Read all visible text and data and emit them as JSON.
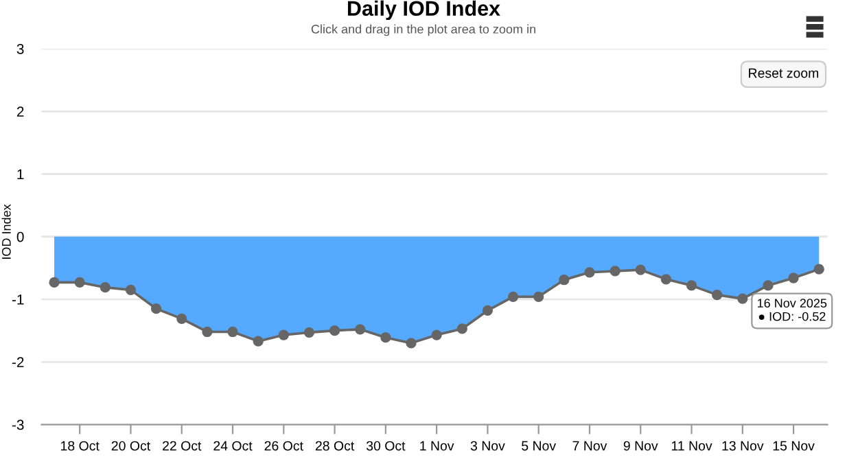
{
  "chart_data": {
    "type": "area",
    "title": "Daily IOD Index",
    "subtitle": "Click and drag in the plot area to zoom in",
    "ylabel": "IOD Index",
    "x": [
      "2025-10-17",
      "2025-10-18",
      "2025-10-19",
      "2025-10-20",
      "2025-10-21",
      "2025-10-22",
      "2025-10-23",
      "2025-10-24",
      "2025-10-25",
      "2025-10-26",
      "2025-10-27",
      "2025-10-28",
      "2025-10-29",
      "2025-10-30",
      "2025-10-31",
      "2025-11-01",
      "2025-11-02",
      "2025-11-03",
      "2025-11-04",
      "2025-11-05",
      "2025-11-06",
      "2025-11-07",
      "2025-11-08",
      "2025-11-09",
      "2025-11-10",
      "2025-11-11",
      "2025-11-12",
      "2025-11-13",
      "2025-11-14",
      "2025-11-15",
      "2025-11-16"
    ],
    "series": [
      {
        "color": "#55aaff",
        "values": [
          -0.73,
          -0.73,
          -0.81,
          -0.85,
          -1.15,
          -1.31,
          -1.52,
          -1.52,
          -1.67,
          -1.57,
          -1.53,
          -1.5,
          -1.48,
          -1.61,
          -1.7,
          -1.57,
          -1.47,
          -1.18,
          -0.96,
          -0.96,
          -0.69,
          -0.57,
          -0.55,
          -0.53,
          -0.68,
          -0.78,
          -0.93,
          -0.99,
          -0.78,
          -0.66,
          -0.52
        ]
      }
    ],
    "xlim": [
      "2025-10-16T12:00",
      "2025-11-16T08:00"
    ],
    "ylim": [
      -3,
      3
    ],
    "yticks": [
      -3,
      -2,
      -1,
      0,
      1,
      2,
      3
    ],
    "xticks": [
      {
        "value": "2025-10-18",
        "label": "18 Oct"
      },
      {
        "value": "2025-10-20",
        "label": "20 Oct"
      },
      {
        "value": "2025-10-22",
        "label": "22 Oct"
      },
      {
        "value": "2025-10-24",
        "label": "24 Oct"
      },
      {
        "value": "2025-10-26",
        "label": "26 Oct"
      },
      {
        "value": "2025-10-28",
        "label": "28 Oct"
      },
      {
        "value": "2025-10-30",
        "label": "30 Oct"
      },
      {
        "value": "2025-11-01",
        "label": "1 Nov"
      },
      {
        "value": "2025-11-03",
        "label": "3 Nov"
      },
      {
        "value": "2025-11-05",
        "label": "5 Nov"
      },
      {
        "value": "2025-11-07",
        "label": "7 Nov"
      },
      {
        "value": "2025-11-09",
        "label": "9 Nov"
      },
      {
        "value": "2025-11-11",
        "label": "11 Nov"
      },
      {
        "value": "2025-11-13",
        "label": "13 Nov"
      },
      {
        "value": "2025-11-15",
        "label": "15 Nov"
      }
    ],
    "grid": "y",
    "marker": "circle",
    "line_style": "solid",
    "legend": false,
    "annotations": [
      "16 Nov 2025\n● IOD: -0.52",
      "Reset zoom"
    ]
  }
}
